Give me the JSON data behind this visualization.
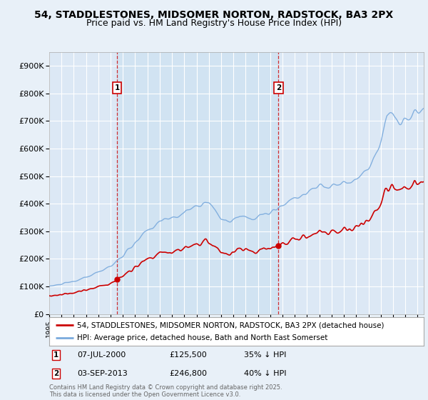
{
  "title": "54, STADDLESTONES, MIDSOMER NORTON, RADSTOCK, BA3 2PX",
  "subtitle": "Price paid vs. HM Land Registry's House Price Index (HPI)",
  "title_fontsize": 10,
  "subtitle_fontsize": 9,
  "background_color": "#e8f0f8",
  "plot_bg_color": "#dce8f5",
  "shade_color": "#cce0f0",
  "line1_color": "#cc0000",
  "line2_color": "#7aaadd",
  "line1_label": "54, STADDLESTONES, MIDSOMER NORTON, RADSTOCK, BA3 2PX (detached house)",
  "line2_label": "HPI: Average price, detached house, Bath and North East Somerset",
  "sale1_date": 2000.52,
  "sale1_price": 125500,
  "sale1_label": "1",
  "sale2_date": 2013.67,
  "sale2_price": 246800,
  "sale2_label": "2",
  "xmin": 1995,
  "xmax": 2025.5,
  "ymin": 0,
  "ymax": 950000,
  "yticks": [
    0,
    100000,
    200000,
    300000,
    400000,
    500000,
    600000,
    700000,
    800000,
    900000
  ],
  "ytick_labels": [
    "£0",
    "£100K",
    "£200K",
    "£300K",
    "£400K",
    "£500K",
    "£600K",
    "£700K",
    "£800K",
    "£900K"
  ],
  "footer": "Contains HM Land Registry data © Crown copyright and database right 2025.\nThis data is licensed under the Open Government Licence v3.0.",
  "legend_info": [
    {
      "label": "1",
      "date": "07-JUL-2000",
      "price": "£125,500",
      "note": "35% ↓ HPI"
    },
    {
      "label": "2",
      "date": "03-SEP-2013",
      "price": "£246,800",
      "note": "40% ↓ HPI"
    }
  ]
}
